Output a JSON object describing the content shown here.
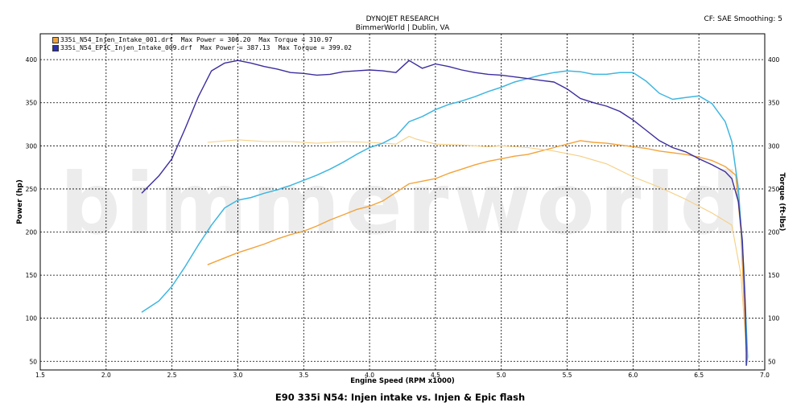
{
  "header": {
    "company": "DYNOJET RESEARCH",
    "shop": "BimmerWorld | Dublin, VA",
    "settings": "CF: SAE  Smoothing: 5"
  },
  "watermark": "bimmerworld",
  "colors": {
    "series1_power": "#f2a33a",
    "series1_torque": "#f6cf84",
    "series2_power": "#3fb6e0",
    "series2_torque": "#3b2d9e",
    "swatch1": "#f2a33a",
    "swatch2": "#2b2fb0"
  },
  "legend": [
    {
      "file": "335i_N54_Injen_Intake_001.drf",
      "power": "Max Power = 306.20",
      "torque": "Max Torque = 310.97"
    },
    {
      "file": "335i_N54_EPIC_Injen_Intake_009.drf",
      "power": "Max Power = 387.13",
      "torque": "Max Torque = 399.02"
    }
  ],
  "chart_data": {
    "type": "line",
    "title": "E90 335i N54: Injen intake vs. Injen & Epic flash",
    "xlabel": "Engine Speed (RPM x1000)",
    "ylabel": "Power (hp)",
    "y2label": "Torque (ft-lbs)",
    "xlim": [
      1.5,
      7.0
    ],
    "ylim": [
      40,
      430
    ],
    "grid": true,
    "legend_position": "top-left",
    "x_ticks": [
      "1.5",
      "2.0",
      "2.5",
      "3.0",
      "3.5",
      "4.0",
      "4.5",
      "5.0",
      "5.5",
      "6.0",
      "6.5",
      "7.0"
    ],
    "y_ticks": [
      "50",
      "100",
      "150",
      "200",
      "250",
      "300",
      "350",
      "400"
    ],
    "series": [
      {
        "name": "335i_N54_Injen_Intake_001.drf Power",
        "axis": "left",
        "x": [
          2.77,
          2.9,
          3.0,
          3.1,
          3.2,
          3.3,
          3.4,
          3.5,
          3.6,
          3.7,
          3.8,
          3.9,
          4.0,
          4.1,
          4.2,
          4.3,
          4.4,
          4.5,
          4.6,
          4.7,
          4.8,
          4.9,
          5.0,
          5.1,
          5.2,
          5.3,
          5.4,
          5.5,
          5.6,
          5.7,
          5.8,
          5.9,
          6.0,
          6.1,
          6.2,
          6.3,
          6.4,
          6.5,
          6.6,
          6.7,
          6.78,
          6.82,
          6.84,
          6.86,
          6.86
        ],
        "y": [
          162,
          170,
          176,
          181,
          186,
          192,
          197,
          201,
          207,
          214,
          220,
          226,
          230,
          236,
          246,
          256,
          259,
          262,
          268,
          273,
          278,
          282,
          285,
          288,
          290,
          294,
          298,
          302,
          306,
          304,
          303,
          301,
          299,
          297,
          294,
          292,
          290,
          287,
          283,
          276,
          266,
          200,
          130,
          60,
          45
        ]
      },
      {
        "name": "335i_N54_Injen_Intake_001.drf Torque",
        "axis": "right",
        "x": [
          2.77,
          3.0,
          3.2,
          3.4,
          3.6,
          3.8,
          4.0,
          4.2,
          4.3,
          4.35,
          4.5,
          4.7,
          4.9,
          5.0,
          5.2,
          5.4,
          5.6,
          5.8,
          6.0,
          6.2,
          6.4,
          6.6,
          6.75,
          6.82,
          6.86,
          6.86
        ],
        "y": [
          304,
          307,
          305,
          305,
          303,
          305,
          304,
          302,
          311,
          308,
          302,
          301,
          299,
          300,
          298,
          294,
          288,
          279,
          264,
          252,
          238,
          222,
          208,
          150,
          60,
          45
        ]
      },
      {
        "name": "335i_N54_EPIC_Injen_Intake_009.drf Power",
        "axis": "left",
        "x": [
          2.27,
          2.4,
          2.5,
          2.6,
          2.7,
          2.8,
          2.9,
          3.0,
          3.1,
          3.2,
          3.3,
          3.4,
          3.5,
          3.6,
          3.7,
          3.8,
          3.9,
          4.0,
          4.1,
          4.2,
          4.3,
          4.4,
          4.5,
          4.6,
          4.7,
          4.8,
          4.9,
          5.0,
          5.1,
          5.2,
          5.3,
          5.4,
          5.5,
          5.6,
          5.7,
          5.8,
          5.9,
          6.0,
          6.1,
          6.2,
          6.3,
          6.4,
          6.5,
          6.6,
          6.7,
          6.75,
          6.8,
          6.84,
          6.86,
          6.87,
          6.86
        ],
        "y": [
          107,
          120,
          137,
          160,
          185,
          208,
          228,
          237,
          240,
          245,
          249,
          254,
          260,
          266,
          273,
          281,
          290,
          298,
          303,
          311,
          328,
          334,
          342,
          348,
          352,
          357,
          363,
          368,
          374,
          378,
          382,
          385,
          387,
          386,
          383,
          383,
          385,
          385,
          375,
          361,
          354,
          356,
          358,
          349,
          328,
          305,
          250,
          160,
          90,
          55,
          45
        ]
      },
      {
        "name": "335i_N54_EPIC_Injen_Intake_009.drf Torque",
        "axis": "right",
        "x": [
          2.27,
          2.4,
          2.5,
          2.6,
          2.7,
          2.8,
          2.9,
          3.0,
          3.1,
          3.2,
          3.3,
          3.4,
          3.5,
          3.6,
          3.7,
          3.8,
          3.9,
          4.0,
          4.1,
          4.2,
          4.3,
          4.4,
          4.5,
          4.6,
          4.7,
          4.8,
          4.9,
          5.0,
          5.1,
          5.2,
          5.3,
          5.4,
          5.5,
          5.6,
          5.7,
          5.8,
          5.9,
          6.0,
          6.1,
          6.2,
          6.3,
          6.4,
          6.5,
          6.6,
          6.7,
          6.75,
          6.8,
          6.83,
          6.85,
          6.86,
          6.86
        ],
        "y": [
          245,
          265,
          285,
          320,
          357,
          387,
          396,
          399,
          396,
          392,
          389,
          385,
          384,
          382,
          383,
          386,
          387,
          388,
          387,
          385,
          399,
          390,
          395,
          392,
          388,
          385,
          383,
          382,
          380,
          378,
          376,
          374,
          366,
          355,
          350,
          346,
          340,
          330,
          318,
          306,
          298,
          293,
          285,
          278,
          270,
          262,
          235,
          190,
          120,
          60,
          45
        ]
      }
    ]
  }
}
